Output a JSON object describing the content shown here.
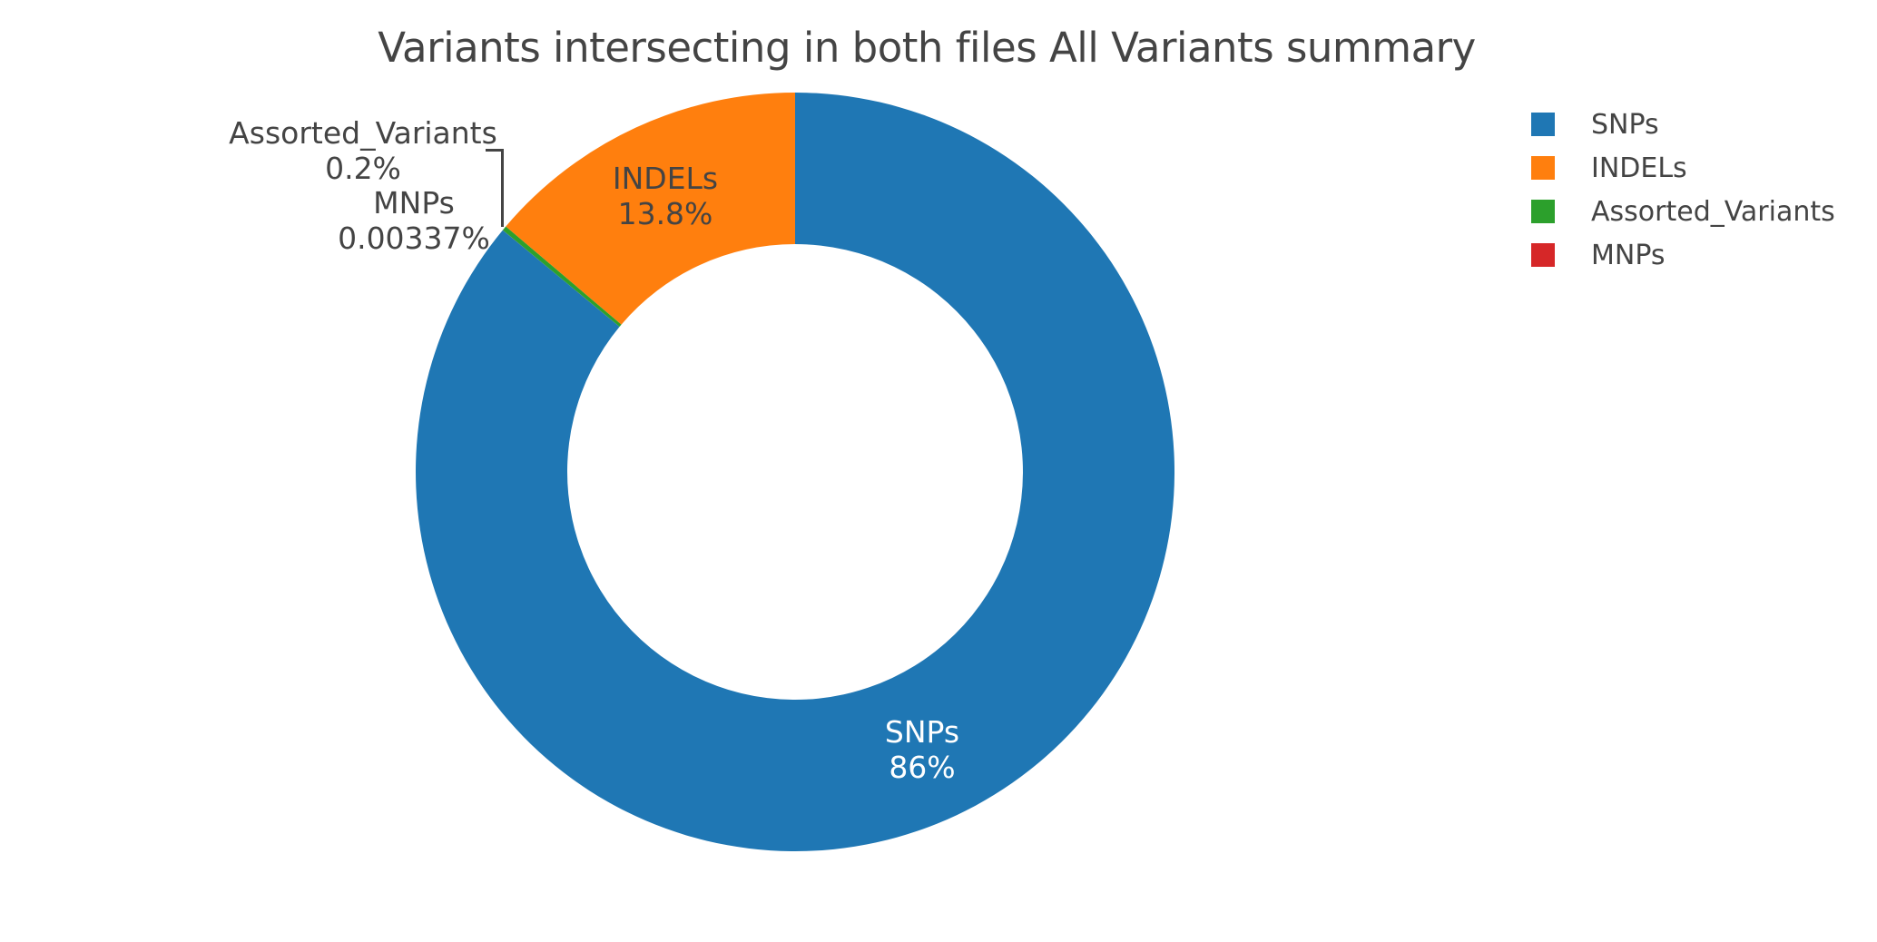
{
  "page": {
    "background_color": "#ffffff",
    "text_color": "#444444"
  },
  "chart_data": {
    "type": "pie",
    "title": "Variants intersecting in both files All Variants summary",
    "hole": 0.6,
    "rotation_deg": 0,
    "direction": "clockwise",
    "slices": [
      {
        "label": "SNPs",
        "pct": 86,
        "display_pct": "86%",
        "color": "#1f77b4",
        "label_placement": "inside",
        "label_color": "#ffffff"
      },
      {
        "label": "INDELs",
        "pct": 13.8,
        "display_pct": "13.8%",
        "color": "#ff7f0e",
        "label_placement": "inside",
        "label_color": "#444444"
      },
      {
        "label": "Assorted_Variants",
        "pct": 0.2,
        "display_pct": "0.2%",
        "color": "#2ca02c",
        "label_placement": "outside",
        "label_color": "#444444"
      },
      {
        "label": "MNPs",
        "pct": 0.00337,
        "display_pct": "0.00337%",
        "color": "#d62728",
        "label_placement": "outside",
        "label_color": "#444444"
      }
    ],
    "draw_order_clockwise_from_top": [
      "SNPs",
      "MNPs",
      "Assorted_Variants",
      "INDELs"
    ],
    "legend": {
      "position": "right",
      "entries": [
        "SNPs",
        "INDELs",
        "Assorted_Variants",
        "MNPs"
      ]
    },
    "leader_line_color": "#444444"
  }
}
